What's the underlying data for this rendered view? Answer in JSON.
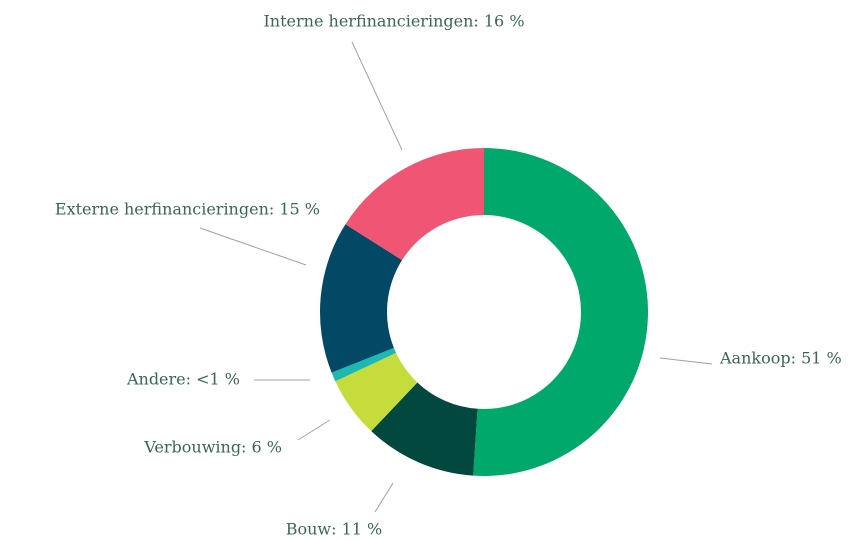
{
  "chart_data": {
    "type": "donut",
    "labels": [
      "Aankoop: 51 %",
      "Bouw: 11 %",
      "Verbouwing: 6 %",
      "Andere: <1 %",
      "Externe herfinancieringen: 15 %",
      "Interne herfinancieringen: 16 %"
    ],
    "values": [
      51,
      11,
      6,
      0.9,
      15,
      16
    ],
    "colors": [
      "#00a86b",
      "#02483f",
      "#c6db3c",
      "#1cb8b4",
      "#034864",
      "#f15574"
    ]
  }
}
